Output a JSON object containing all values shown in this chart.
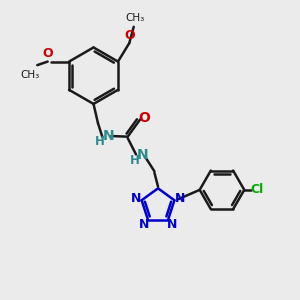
{
  "bg_color": "#ebebeb",
  "bond_color": "#1a1a1a",
  "N_color": "#2e8b8b",
  "N_tet_color": "#0000cc",
  "O_color": "#cc0000",
  "Cl_color": "#00aa00",
  "figsize": [
    3.0,
    3.0
  ],
  "dpi": 100,
  "xlim": [
    0,
    10
  ],
  "ylim": [
    0,
    10
  ]
}
